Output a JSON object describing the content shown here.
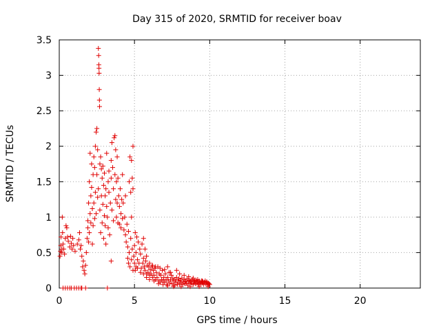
{
  "chart_data": {
    "type": "scatter",
    "title": "Day 315 of 2020, SRMTID for receiver boav",
    "xlabel": "GPS time / hours",
    "ylabel": "SRMTID / TECUs",
    "xlim": [
      0,
      24
    ],
    "ylim": [
      0,
      3.5
    ],
    "xticks": [
      0,
      5,
      10,
      15,
      20
    ],
    "xtick_labels": [
      "0",
      "5",
      "10",
      "15",
      "20"
    ],
    "yticks": [
      0,
      0.5,
      1,
      1.5,
      2,
      2.5,
      3,
      3.5
    ],
    "ytick_labels": [
      "0",
      "0.5",
      "1",
      "1.5",
      "2",
      "2.5",
      "3",
      "3.5"
    ],
    "grid": true,
    "marker": "+",
    "color": "#e00000",
    "series": [
      {
        "name": "SRMTID",
        "points": [
          [
            0.05,
            0.45
          ],
          [
            0.08,
            0.52
          ],
          [
            0.1,
            0.6
          ],
          [
            0.12,
            0.72
          ],
          [
            0.15,
            0.5
          ],
          [
            0.18,
            0.55
          ],
          [
            0.2,
            1.0
          ],
          [
            0.22,
            0.78
          ],
          [
            0.25,
            0.62
          ],
          [
            0.3,
            0.55
          ],
          [
            0.35,
            0.48
          ],
          [
            0.4,
            0.7
          ],
          [
            0.45,
            0.88
          ],
          [
            0.5,
            0.85
          ],
          [
            0.55,
            0.72
          ],
          [
            0.6,
            0.66
          ],
          [
            0.7,
            0.58
          ],
          [
            0.75,
            0.73
          ],
          [
            0.8,
            0.63
          ],
          [
            0.85,
            0.55
          ],
          [
            0.9,
            0.7
          ],
          [
            0.95,
            0.6
          ],
          [
            1.05,
            0.52
          ],
          [
            0.25,
            0.0
          ],
          [
            0.4,
            0.0
          ],
          [
            0.55,
            0.0
          ],
          [
            0.7,
            0.0
          ],
          [
            0.8,
            0.0
          ],
          [
            1.0,
            0.0
          ],
          [
            1.15,
            0.0
          ],
          [
            1.3,
            0.0
          ],
          [
            1.45,
            0.0
          ],
          [
            1.5,
            0.0
          ],
          [
            1.75,
            0.0
          ],
          [
            3.2,
            0.0
          ],
          [
            1.2,
            0.62
          ],
          [
            1.3,
            0.68
          ],
          [
            1.35,
            0.78
          ],
          [
            1.4,
            0.55
          ],
          [
            1.45,
            0.6
          ],
          [
            1.5,
            0.45
          ],
          [
            1.55,
            0.3
          ],
          [
            1.6,
            0.38
          ],
          [
            1.65,
            0.25
          ],
          [
            1.7,
            0.2
          ],
          [
            1.75,
            0.32
          ],
          [
            1.8,
            0.5
          ],
          [
            1.85,
            0.7
          ],
          [
            1.9,
            0.95
          ],
          [
            1.95,
            1.2
          ],
          [
            2.0,
            1.5
          ],
          [
            2.05,
            1.9
          ],
          [
            2.1,
            1.3
          ],
          [
            2.15,
            1.75
          ],
          [
            1.9,
            0.85
          ],
          [
            1.95,
            0.65
          ],
          [
            2.0,
            0.78
          ],
          [
            2.05,
            1.05
          ],
          [
            2.1,
            0.92
          ],
          [
            2.15,
            1.42
          ],
          [
            2.2,
            1.12
          ],
          [
            2.2,
            0.62
          ],
          [
            2.25,
            1.6
          ],
          [
            2.25,
            0.88
          ],
          [
            2.3,
            1.85
          ],
          [
            2.3,
            1.2
          ],
          [
            2.35,
            1.7
          ],
          [
            2.35,
            0.98
          ],
          [
            2.4,
            2.0
          ],
          [
            2.4,
            1.35
          ],
          [
            2.45,
            2.2
          ],
          [
            2.45,
            1.05
          ],
          [
            2.5,
            2.25
          ],
          [
            2.5,
            1.6
          ],
          [
            2.55,
            1.95
          ],
          [
            2.55,
            1.28
          ],
          [
            2.6,
            3.38
          ],
          [
            2.6,
            1.4
          ],
          [
            2.62,
            3.28
          ],
          [
            2.63,
            3.15
          ],
          [
            2.64,
            3.1
          ],
          [
            2.65,
            3.03
          ],
          [
            2.66,
            2.8
          ],
          [
            2.67,
            2.65
          ],
          [
            2.68,
            2.56
          ],
          [
            2.7,
            1.75
          ],
          [
            2.7,
            1.1
          ],
          [
            2.75,
            1.85
          ],
          [
            2.75,
            0.78
          ],
          [
            2.8,
            1.68
          ],
          [
            2.8,
            1.3
          ],
          [
            2.85,
            1.55
          ],
          [
            2.85,
            0.92
          ],
          [
            2.9,
            1.72
          ],
          [
            2.9,
            1.18
          ],
          [
            2.95,
            1.45
          ],
          [
            2.95,
            0.7
          ],
          [
            3.0,
            1.62
          ],
          [
            3.0,
            1.02
          ],
          [
            3.05,
            1.3
          ],
          [
            3.05,
            0.88
          ],
          [
            3.1,
            1.4
          ],
          [
            3.1,
            0.62
          ],
          [
            3.15,
            1.9
          ],
          [
            3.15,
            1.15
          ],
          [
            3.2,
            1.0
          ],
          [
            3.25,
            1.5
          ],
          [
            3.25,
            0.85
          ],
          [
            3.3,
            1.35
          ],
          [
            3.3,
            1.65
          ],
          [
            3.35,
            0.75
          ],
          [
            3.4,
            1.2
          ],
          [
            3.45,
            1.55
          ],
          [
            3.45,
            0.38
          ],
          [
            3.45,
            1.8
          ],
          [
            3.5,
            2.05
          ],
          [
            3.5,
            1.1
          ],
          [
            3.55,
            1.7
          ],
          [
            3.6,
            1.4
          ],
          [
            3.6,
            0.95
          ],
          [
            3.65,
            2.12
          ],
          [
            3.7,
            2.15
          ],
          [
            3.7,
            1.6
          ],
          [
            3.75,
            1.25
          ],
          [
            3.75,
            1.95
          ],
          [
            3.8,
            1.5
          ],
          [
            3.8,
            1.0
          ],
          [
            3.85,
            1.85
          ],
          [
            3.85,
            1.2
          ],
          [
            3.9,
            1.55
          ],
          [
            3.9,
            0.92
          ],
          [
            3.95,
            1.3
          ],
          [
            4.0,
            1.15
          ],
          [
            4.0,
            0.9
          ],
          [
            4.05,
            1.4
          ],
          [
            4.1,
            1.05
          ],
          [
            4.1,
            0.85
          ],
          [
            4.15,
            1.25
          ],
          [
            4.2,
            0.98
          ],
          [
            4.2,
            1.6
          ],
          [
            4.25,
            1.2
          ],
          [
            4.3,
            0.82
          ],
          [
            4.35,
            1.0
          ],
          [
            4.4,
            0.75
          ],
          [
            4.4,
            1.3
          ],
          [
            4.45,
            0.65
          ],
          [
            4.5,
            0.9
          ],
          [
            4.55,
            0.58
          ],
          [
            4.6,
            0.8
          ],
          [
            4.65,
            1.5
          ],
          [
            4.7,
            1.85
          ],
          [
            4.75,
            1.35
          ],
          [
            4.75,
            0.7
          ],
          [
            4.8,
            1.8
          ],
          [
            4.8,
            1.0
          ],
          [
            4.85,
            1.55
          ],
          [
            4.85,
            0.55
          ],
          [
            4.9,
            1.4
          ],
          [
            4.9,
            2.0
          ],
          [
            4.95,
            0.45
          ],
          [
            5.0,
            0.6
          ],
          [
            5.0,
            0.35
          ],
          [
            5.05,
            0.78
          ],
          [
            5.1,
            0.5
          ],
          [
            5.1,
            0.3
          ],
          [
            5.15,
            0.72
          ],
          [
            5.2,
            0.4
          ],
          [
            5.25,
            0.65
          ],
          [
            5.3,
            0.35
          ],
          [
            5.35,
            0.55
          ],
          [
            5.4,
            0.48
          ],
          [
            5.45,
            0.28
          ],
          [
            5.5,
            0.62
          ],
          [
            5.55,
            0.35
          ],
          [
            4.55,
            0.42
          ],
          [
            4.6,
            0.35
          ],
          [
            4.65,
            0.5
          ],
          [
            4.7,
            0.3
          ],
          [
            4.8,
            0.4
          ],
          [
            4.9,
            0.25
          ],
          [
            5.6,
            0.42
          ],
          [
            5.65,
            0.3
          ],
          [
            5.7,
            0.25
          ],
          [
            5.75,
            0.38
          ],
          [
            5.8,
            0.2
          ],
          [
            5.85,
            0.32
          ],
          [
            5.9,
            0.22
          ],
          [
            5.95,
            0.3
          ],
          [
            6.0,
            0.18
          ],
          [
            6.05,
            0.26
          ],
          [
            6.1,
            0.2
          ],
          [
            6.15,
            0.3
          ],
          [
            6.2,
            0.15
          ],
          [
            6.25,
            0.25
          ],
          [
            6.3,
            0.18
          ],
          [
            6.35,
            0.28
          ],
          [
            6.4,
            0.12
          ],
          [
            6.45,
            0.22
          ],
          [
            6.5,
            0.15
          ],
          [
            6.55,
            0.3
          ],
          [
            6.6,
            0.1
          ],
          [
            6.65,
            0.2
          ],
          [
            6.7,
            0.08
          ],
          [
            6.75,
            0.18
          ],
          [
            6.8,
            0.12
          ],
          [
            6.85,
            0.25
          ],
          [
            6.9,
            0.1
          ],
          [
            6.95,
            0.15
          ],
          [
            7.0,
            0.08
          ],
          [
            7.05,
            0.2
          ],
          [
            7.1,
            0.12
          ],
          [
            7.15,
            0.05
          ],
          [
            7.2,
            0.15
          ],
          [
            7.25,
            0.1
          ],
          [
            7.3,
            0.22
          ],
          [
            7.35,
            0.07
          ],
          [
            7.4,
            0.12
          ],
          [
            7.45,
            0.18
          ],
          [
            7.5,
            0.06
          ],
          [
            7.55,
            0.14
          ],
          [
            7.6,
            0.1
          ],
          [
            7.65,
            0.04
          ],
          [
            7.7,
            0.12
          ],
          [
            7.75,
            0.08
          ],
          [
            7.8,
            0.15
          ],
          [
            7.85,
            0.05
          ],
          [
            7.9,
            0.1
          ],
          [
            7.95,
            0.13
          ],
          [
            8.0,
            0.06
          ],
          [
            8.05,
            0.11
          ],
          [
            8.1,
            0.08
          ],
          [
            8.15,
            0.14
          ],
          [
            8.2,
            0.05
          ],
          [
            8.25,
            0.09
          ],
          [
            8.3,
            0.12
          ],
          [
            8.35,
            0.06
          ],
          [
            8.4,
            0.1
          ],
          [
            8.45,
            0.07
          ],
          [
            8.5,
            0.13
          ],
          [
            8.55,
            0.04
          ],
          [
            8.6,
            0.09
          ],
          [
            8.65,
            0.11
          ],
          [
            8.7,
            0.06
          ],
          [
            8.75,
            0.1
          ],
          [
            8.8,
            0.07
          ],
          [
            8.85,
            0.12
          ],
          [
            8.9,
            0.05
          ],
          [
            8.95,
            0.09
          ],
          [
            9.0,
            0.1
          ],
          [
            9.05,
            0.06
          ],
          [
            9.1,
            0.11
          ],
          [
            9.15,
            0.07
          ],
          [
            9.2,
            0.09
          ],
          [
            9.25,
            0.05
          ],
          [
            9.3,
            0.1
          ],
          [
            9.35,
            0.08
          ],
          [
            9.4,
            0.06
          ],
          [
            9.45,
            0.1
          ],
          [
            9.5,
            0.07
          ],
          [
            9.55,
            0.09
          ],
          [
            9.6,
            0.05
          ],
          [
            9.65,
            0.08
          ],
          [
            9.7,
            0.1
          ],
          [
            9.75,
            0.06
          ],
          [
            9.8,
            0.08
          ],
          [
            9.85,
            0.05
          ],
          [
            9.9,
            0.07
          ],
          [
            9.95,
            0.06
          ],
          [
            10.0,
            0.05
          ],
          [
            5.6,
            0.7
          ],
          [
            5.7,
            0.55
          ],
          [
            5.8,
            0.45
          ],
          [
            6.0,
            0.35
          ],
          [
            6.2,
            0.32
          ],
          [
            6.4,
            0.3
          ],
          [
            6.7,
            0.28
          ],
          [
            7.0,
            0.26
          ],
          [
            7.2,
            0.3
          ],
          [
            7.4,
            0.22
          ],
          [
            7.8,
            0.25
          ],
          [
            8.0,
            0.2
          ],
          [
            8.3,
            0.18
          ],
          [
            8.6,
            0.16
          ],
          [
            8.9,
            0.14
          ],
          [
            9.2,
            0.12
          ],
          [
            9.5,
            0.1
          ],
          [
            9.8,
            0.09
          ],
          [
            5.05,
            0.25
          ],
          [
            5.2,
            0.28
          ],
          [
            5.4,
            0.22
          ],
          [
            5.6,
            0.2
          ],
          [
            5.8,
            0.15
          ],
          [
            6.0,
            0.12
          ],
          [
            6.3,
            0.1
          ],
          [
            6.6,
            0.06
          ],
          [
            6.9,
            0.05
          ],
          [
            7.2,
            0.03
          ],
          [
            7.6,
            0.02
          ],
          [
            8.1,
            0.02
          ],
          [
            8.7,
            0.02
          ],
          [
            9.3,
            0.02
          ],
          [
            9.9,
            0.02
          ]
        ]
      }
    ]
  }
}
